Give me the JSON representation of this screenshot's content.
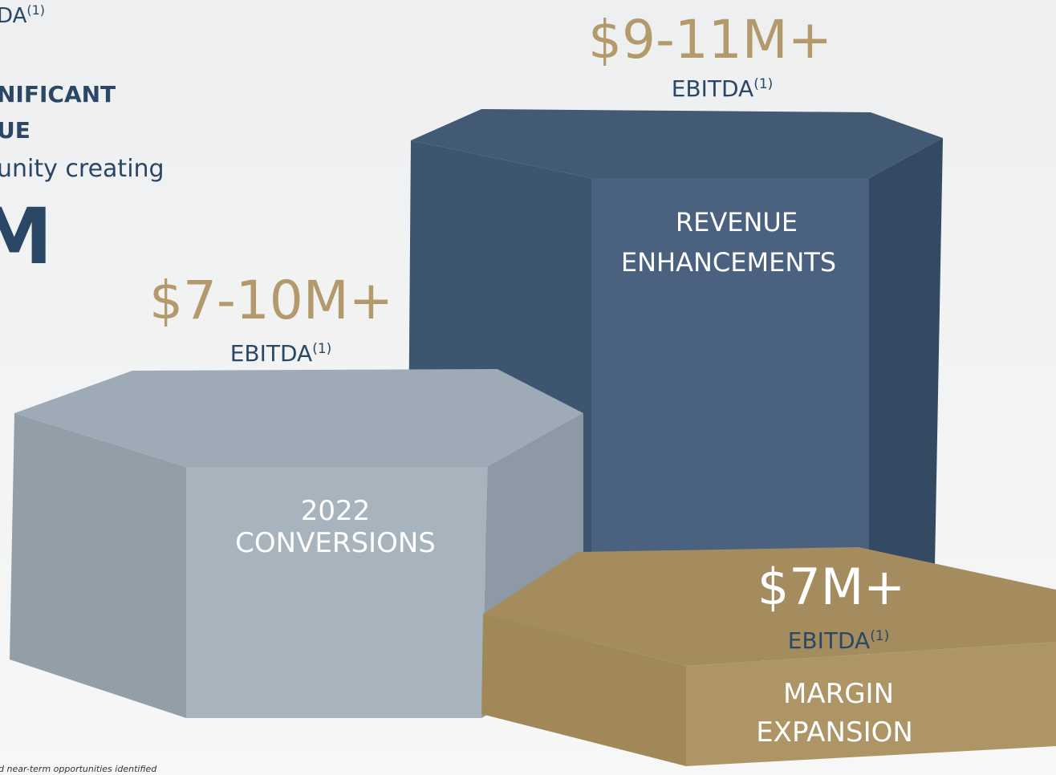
{
  "left_text": {
    "line1": "DA",
    "line1_note": "(1)",
    "line2": "NIFICANT",
    "line3": "UE",
    "line4": "unity creating",
    "big": "M",
    "footnote": "d near-term opportunities identified"
  },
  "blocks": [
    {
      "amount": "$9-11M+",
      "metric": "EBITDA",
      "note": "(1)",
      "label_lines": [
        "REVENUE",
        "ENHANCEMENTS"
      ]
    },
    {
      "amount": "$7-10M+",
      "metric": "EBITDA",
      "note": "(1)",
      "label_lines": [
        "2022",
        "CONVERSIONS"
      ]
    },
    {
      "amount": "$7M+",
      "metric": "EBITDA",
      "note": "(1)",
      "label_lines": [
        "MARGIN",
        "EXPANSION"
      ]
    }
  ]
}
